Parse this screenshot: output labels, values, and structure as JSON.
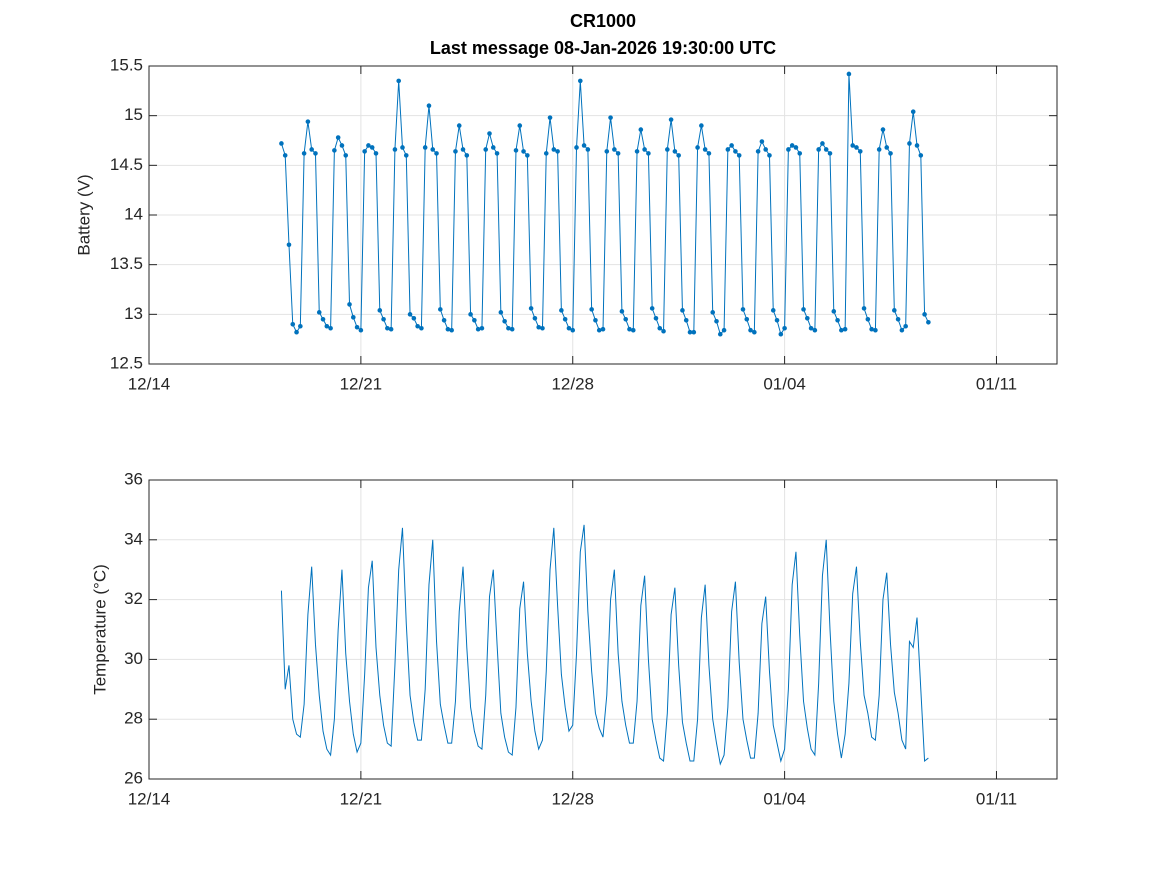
{
  "chart_data": [
    {
      "type": "line",
      "title": "CR1000",
      "subtitle": "Last message 08-Jan-2026 19:30:00 UTC",
      "y_label": "Battery (V)",
      "markers": true,
      "grid": true,
      "xlim": [
        0,
        30
      ],
      "xticks": [
        {
          "value": 0,
          "label": "12/14"
        },
        {
          "value": 7,
          "label": "12/21"
        },
        {
          "value": 14,
          "label": "12/28"
        },
        {
          "value": 21,
          "label": "01/04"
        },
        {
          "value": 28,
          "label": "01/11"
        }
      ],
      "ylim": [
        12.5,
        15.5
      ],
      "yticks": [
        12.5,
        13,
        13.5,
        14,
        14.5,
        15,
        15.5
      ],
      "x": [
        4.375,
        4.5,
        4.625,
        4.75,
        4.875,
        5,
        5.125,
        5.25,
        5.375,
        5.5,
        5.625,
        5.75,
        5.875,
        6,
        6.125,
        6.25,
        6.375,
        6.5,
        6.625,
        6.75,
        6.875,
        7,
        7.125,
        7.25,
        7.375,
        7.5,
        7.625,
        7.75,
        7.875,
        8,
        8.125,
        8.25,
        8.375,
        8.5,
        8.625,
        8.75,
        8.875,
        9,
        9.125,
        9.25,
        9.375,
        9.5,
        9.625,
        9.75,
        9.875,
        10,
        10.125,
        10.25,
        10.375,
        10.5,
        10.625,
        10.75,
        10.875,
        11,
        11.125,
        11.25,
        11.375,
        11.5,
        11.625,
        11.75,
        11.875,
        12,
        12.125,
        12.25,
        12.375,
        12.5,
        12.625,
        12.75,
        12.875,
        13,
        13.125,
        13.25,
        13.375,
        13.5,
        13.625,
        13.75,
        13.875,
        14,
        14.125,
        14.25,
        14.375,
        14.5,
        14.625,
        14.75,
        14.875,
        15,
        15.125,
        15.25,
        15.375,
        15.5,
        15.625,
        15.75,
        15.875,
        16,
        16.125,
        16.25,
        16.375,
        16.5,
        16.625,
        16.75,
        16.875,
        17,
        17.125,
        17.25,
        17.375,
        17.5,
        17.625,
        17.75,
        17.875,
        18,
        18.125,
        18.25,
        18.375,
        18.5,
        18.625,
        18.75,
        18.875,
        19,
        19.125,
        19.25,
        19.375,
        19.5,
        19.625,
        19.75,
        19.875,
        20,
        20.125,
        20.25,
        20.375,
        20.5,
        20.625,
        20.75,
        20.875,
        21,
        21.125,
        21.25,
        21.375,
        21.5,
        21.625,
        21.75,
        21.875,
        22,
        22.125,
        22.25,
        22.375,
        22.5,
        22.625,
        22.75,
        22.875,
        23,
        23.125,
        23.25,
        23.375,
        23.5,
        23.625,
        23.75,
        23.875,
        24,
        24.125,
        24.25,
        24.375,
        24.5,
        24.625,
        24.75,
        24.875,
        25,
        25.125,
        25.25,
        25.375,
        25.5,
        25.625,
        25.75
      ],
      "series": [
        {
          "name": "Battery",
          "color": "#0072bd",
          "values": [
            14.72,
            14.6,
            13.7,
            12.9,
            12.82,
            12.88,
            14.62,
            14.94,
            14.66,
            14.62,
            13.02,
            12.95,
            12.88,
            12.86,
            14.65,
            14.78,
            14.7,
            14.6,
            13.1,
            12.97,
            12.87,
            12.84,
            14.64,
            14.7,
            14.68,
            14.62,
            13.04,
            12.95,
            12.86,
            12.85,
            14.66,
            15.35,
            14.68,
            14.6,
            13.0,
            12.96,
            12.88,
            12.86,
            14.68,
            15.1,
            14.66,
            14.62,
            13.05,
            12.94,
            12.85,
            12.84,
            14.64,
            14.9,
            14.66,
            14.6,
            13.0,
            12.94,
            12.85,
            12.86,
            14.66,
            14.82,
            14.68,
            14.62,
            13.02,
            12.93,
            12.86,
            12.85,
            14.65,
            14.9,
            14.64,
            14.6,
            13.06,
            12.96,
            12.87,
            12.86,
            14.62,
            14.98,
            14.66,
            14.64,
            13.04,
            12.95,
            12.86,
            12.84,
            14.68,
            15.35,
            14.7,
            14.66,
            13.05,
            12.94,
            12.84,
            12.85,
            14.64,
            14.98,
            14.66,
            14.62,
            13.03,
            12.95,
            12.85,
            12.84,
            14.64,
            14.86,
            14.66,
            14.62,
            13.06,
            12.96,
            12.86,
            12.83,
            14.66,
            14.96,
            14.64,
            14.6,
            13.04,
            12.94,
            12.82,
            12.82,
            14.68,
            14.9,
            14.66,
            14.62,
            13.02,
            12.93,
            12.8,
            12.84,
            14.66,
            14.7,
            14.64,
            14.6,
            13.05,
            12.95,
            12.84,
            12.82,
            14.64,
            14.74,
            14.66,
            14.6,
            13.04,
            12.94,
            12.8,
            12.86,
            14.66,
            14.7,
            14.68,
            14.62,
            13.05,
            12.96,
            12.86,
            12.84,
            14.66,
            14.72,
            14.66,
            14.62,
            13.03,
            12.94,
            12.84,
            12.85,
            15.42,
            14.7,
            14.68,
            14.64,
            13.06,
            12.95,
            12.85,
            12.84,
            14.66,
            14.86,
            14.68,
            14.62,
            13.04,
            12.95,
            12.84,
            12.88,
            14.72,
            15.04,
            14.7,
            14.6,
            13.0,
            12.92
          ]
        }
      ]
    },
    {
      "type": "line",
      "y_label": "Temperature (°C)",
      "markers": false,
      "grid": true,
      "xlim": [
        0,
        30
      ],
      "xticks": [
        {
          "value": 0,
          "label": "12/14"
        },
        {
          "value": 7,
          "label": "12/21"
        },
        {
          "value": 14,
          "label": "12/28"
        },
        {
          "value": 21,
          "label": "01/04"
        },
        {
          "value": 28,
          "label": "01/11"
        }
      ],
      "ylim": [
        26,
        36
      ],
      "yticks": [
        26,
        28,
        30,
        32,
        34,
        36
      ],
      "x": [
        4.375,
        4.5,
        4.625,
        4.75,
        4.875,
        5,
        5.125,
        5.25,
        5.375,
        5.5,
        5.625,
        5.75,
        5.875,
        6,
        6.125,
        6.25,
        6.375,
        6.5,
        6.625,
        6.75,
        6.875,
        7,
        7.125,
        7.25,
        7.375,
        7.5,
        7.625,
        7.75,
        7.875,
        8,
        8.125,
        8.25,
        8.375,
        8.5,
        8.625,
        8.75,
        8.875,
        9,
        9.125,
        9.25,
        9.375,
        9.5,
        9.625,
        9.75,
        9.875,
        10,
        10.125,
        10.25,
        10.375,
        10.5,
        10.625,
        10.75,
        10.875,
        11,
        11.125,
        11.25,
        11.375,
        11.5,
        11.625,
        11.75,
        11.875,
        12,
        12.125,
        12.25,
        12.375,
        12.5,
        12.625,
        12.75,
        12.875,
        13,
        13.125,
        13.25,
        13.375,
        13.5,
        13.625,
        13.75,
        13.875,
        14,
        14.125,
        14.25,
        14.375,
        14.5,
        14.625,
        14.75,
        14.875,
        15,
        15.125,
        15.25,
        15.375,
        15.5,
        15.625,
        15.75,
        15.875,
        16,
        16.125,
        16.25,
        16.375,
        16.5,
        16.625,
        16.75,
        16.875,
        17,
        17.125,
        17.25,
        17.375,
        17.5,
        17.625,
        17.75,
        17.875,
        18,
        18.125,
        18.25,
        18.375,
        18.5,
        18.625,
        18.75,
        18.875,
        19,
        19.125,
        19.25,
        19.375,
        19.5,
        19.625,
        19.75,
        19.875,
        20,
        20.125,
        20.25,
        20.375,
        20.5,
        20.625,
        20.75,
        20.875,
        21,
        21.125,
        21.25,
        21.375,
        21.5,
        21.625,
        21.75,
        21.875,
        22,
        22.125,
        22.25,
        22.375,
        22.5,
        22.625,
        22.75,
        22.875,
        23,
        23.125,
        23.25,
        23.375,
        23.5,
        23.625,
        23.75,
        23.875,
        24,
        24.125,
        24.25,
        24.375,
        24.5,
        24.625,
        24.75,
        24.875,
        25,
        25.125,
        25.25,
        25.375,
        25.5,
        25.625,
        25.75
      ],
      "series": [
        {
          "name": "Temperature",
          "color": "#0072bd",
          "values": [
            32.3,
            29.0,
            29.8,
            28.0,
            27.5,
            27.4,
            28.5,
            31.5,
            33.1,
            30.5,
            28.8,
            27.6,
            27.0,
            26.8,
            28.0,
            31.0,
            33.0,
            30.2,
            28.6,
            27.5,
            26.9,
            27.2,
            29.5,
            32.4,
            33.3,
            30.4,
            28.8,
            27.8,
            27.2,
            27.1,
            29.8,
            33.0,
            34.4,
            31.2,
            28.8,
            27.9,
            27.3,
            27.3,
            29.0,
            32.5,
            34.0,
            30.6,
            28.5,
            27.8,
            27.2,
            27.2,
            28.6,
            31.6,
            33.1,
            30.4,
            28.4,
            27.6,
            27.1,
            27.0,
            28.8,
            32.1,
            33.0,
            30.5,
            28.2,
            27.4,
            26.9,
            26.8,
            28.4,
            31.7,
            32.6,
            30.2,
            28.6,
            27.6,
            27.0,
            27.3,
            29.6,
            33.0,
            34.4,
            31.8,
            29.5,
            28.4,
            27.6,
            27.8,
            30.2,
            33.6,
            34.5,
            31.6,
            29.6,
            28.2,
            27.7,
            27.4,
            28.8,
            32.0,
            33.0,
            30.2,
            28.6,
            27.8,
            27.2,
            27.2,
            28.6,
            31.8,
            32.8,
            30.0,
            28.0,
            27.3,
            26.7,
            26.6,
            28.2,
            31.5,
            32.4,
            29.8,
            27.9,
            27.2,
            26.6,
            26.6,
            28.0,
            31.4,
            32.5,
            29.8,
            28.0,
            27.2,
            26.5,
            26.8,
            28.4,
            31.6,
            32.6,
            29.9,
            28.0,
            27.3,
            26.7,
            26.7,
            28.2,
            31.2,
            32.1,
            29.6,
            27.8,
            27.2,
            26.6,
            27.0,
            29.0,
            32.5,
            33.6,
            30.8,
            28.6,
            27.7,
            27.0,
            26.8,
            29.2,
            32.8,
            34.0,
            31.0,
            28.6,
            27.5,
            26.7,
            27.5,
            29.2,
            32.2,
            33.1,
            30.6,
            28.8,
            28.2,
            27.4,
            27.3,
            28.8,
            32.0,
            32.9,
            30.5,
            28.9,
            28.2,
            27.3,
            27.0,
            30.6,
            30.4,
            31.4,
            29.0,
            26.6,
            26.7
          ]
        }
      ]
    }
  ]
}
